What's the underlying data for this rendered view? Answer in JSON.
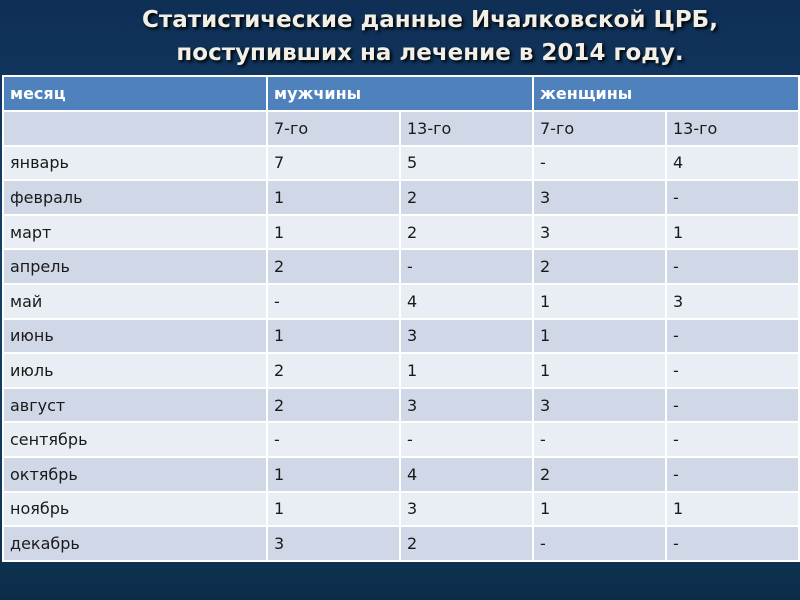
{
  "title": {
    "line1": "Статистические данные Ичалковской ЦРБ,",
    "line2": "поступивших на лечение в 2014 году."
  },
  "colors": {
    "header": "#4f81bd",
    "row_dark": "#d0d8e8",
    "row_light": "#e9edf4",
    "background": "#13406b"
  },
  "table": {
    "headers": [
      "месяц",
      "мужчины",
      "женщины"
    ],
    "subheaders": [
      "",
      "7-го",
      "13-го",
      "7-го",
      "13-го"
    ],
    "rows": [
      [
        "январь",
        "7",
        "5",
        "-",
        "4"
      ],
      [
        "февраль",
        "1",
        "2",
        "3",
        "-"
      ],
      [
        "март",
        "1",
        "2",
        "3",
        "1"
      ],
      [
        "апрель",
        "2",
        "-",
        "2",
        "-"
      ],
      [
        "май",
        "-",
        "4",
        "1",
        "3"
      ],
      [
        "июнь",
        "1",
        "3",
        "1",
        "-"
      ],
      [
        "июль",
        "2",
        "1",
        "1",
        "-"
      ],
      [
        "август",
        "2",
        "3",
        "3",
        "-"
      ],
      [
        "сентябрь",
        "-",
        "-",
        "-",
        "-"
      ],
      [
        "октябрь",
        "1",
        "4",
        "2",
        "-"
      ],
      [
        "ноябрь",
        "1",
        "3",
        "1",
        "1"
      ],
      [
        "декабрь",
        "3",
        "2",
        "-",
        "-"
      ]
    ]
  }
}
